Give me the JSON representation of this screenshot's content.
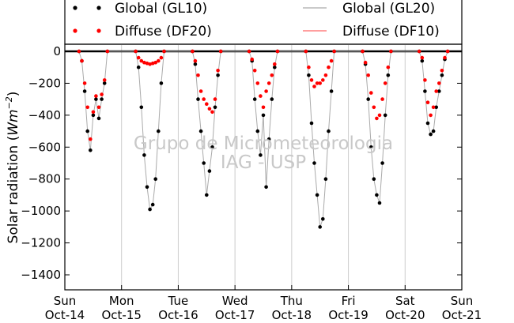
{
  "chart_data": {
    "type": "scatter",
    "ylabel": "Solar radiation (Wm⁻²)",
    "ylabel_parts": {
      "main": "Solar radiation (",
      "unit": "Wm",
      "exp": "−2",
      "close": ")"
    },
    "ylim": [
      -1500,
      0
    ],
    "yticks": [
      0,
      -200,
      -400,
      -600,
      -800,
      -1000,
      -1200,
      -1400
    ],
    "xlim": [
      0,
      7
    ],
    "xticks": [
      {
        "x": 0,
        "line1": "Sun",
        "line2": "Oct-14"
      },
      {
        "x": 1,
        "line1": "Mon",
        "line2": "Oct-15"
      },
      {
        "x": 2,
        "line1": "Tue",
        "line2": "Oct-16"
      },
      {
        "x": 3,
        "line1": "Wed",
        "line2": "Oct-17"
      },
      {
        "x": 4,
        "line1": "Thu",
        "line2": "Oct-18"
      },
      {
        "x": 5,
        "line1": "Fri",
        "line2": "Oct-19"
      },
      {
        "x": 6,
        "line1": "Sat",
        "line2": "Oct-20"
      },
      {
        "x": 7,
        "line1": "Sun",
        "line2": "Oct-21"
      }
    ],
    "grid_x": true,
    "legend_placement": "top",
    "legend": [
      {
        "label": "Global (GL10)",
        "style": "dots",
        "color": "#000000"
      },
      {
        "label": "Global (GL20)",
        "style": "line",
        "color": "#aaaaaa"
      },
      {
        "label": "Diffuse (DF20)",
        "style": "dots",
        "color": "#ff0000"
      },
      {
        "label": "Diffuse (DF10)",
        "style": "line",
        "color": "#ff6666"
      }
    ],
    "series": [
      {
        "name": "Global (GL10)",
        "color": "#000000",
        "style": "dots",
        "x": [
          0.25,
          0.3,
          0.35,
          0.4,
          0.45,
          0.5,
          0.55,
          0.6,
          0.65,
          0.7,
          0.75,
          1.25,
          1.3,
          1.35,
          1.4,
          1.45,
          1.5,
          1.55,
          1.6,
          1.65,
          1.7,
          1.75,
          2.25,
          2.3,
          2.35,
          2.4,
          2.45,
          2.5,
          2.55,
          2.6,
          2.65,
          2.7,
          2.75,
          3.25,
          3.3,
          3.35,
          3.4,
          3.45,
          3.5,
          3.55,
          3.6,
          3.65,
          3.7,
          3.75,
          4.25,
          4.3,
          4.35,
          4.4,
          4.45,
          4.5,
          4.55,
          4.6,
          4.65,
          4.7,
          4.75,
          5.25,
          5.3,
          5.35,
          5.4,
          5.45,
          5.5,
          5.55,
          5.6,
          5.65,
          5.7,
          5.75,
          6.25,
          6.3,
          6.35,
          6.4,
          6.45,
          6.5,
          6.55,
          6.6,
          6.65,
          6.7,
          6.75
        ],
        "y": [
          0,
          -60,
          -250,
          -500,
          -620,
          -400,
          -300,
          -420,
          -300,
          -200,
          0,
          0,
          -100,
          -350,
          -650,
          -850,
          -990,
          -960,
          -800,
          -500,
          -200,
          0,
          0,
          -80,
          -300,
          -500,
          -700,
          -900,
          -750,
          -600,
          -350,
          -150,
          0,
          0,
          -60,
          -300,
          -500,
          -650,
          -400,
          -850,
          -550,
          -300,
          -100,
          0,
          0,
          -150,
          -450,
          -700,
          -900,
          -1100,
          -1050,
          -800,
          -500,
          -250,
          0,
          0,
          -80,
          -300,
          -600,
          -800,
          -900,
          -950,
          -700,
          -400,
          -150,
          0,
          0,
          -60,
          -250,
          -450,
          -520,
          -500,
          -350,
          -250,
          -150,
          -50,
          0
        ]
      },
      {
        "name": "Diffuse (DF20)",
        "color": "#ff0000",
        "style": "dots",
        "x": [
          0.25,
          0.3,
          0.35,
          0.4,
          0.45,
          0.5,
          0.55,
          0.6,
          0.65,
          0.7,
          0.75,
          1.25,
          1.3,
          1.35,
          1.4,
          1.45,
          1.5,
          1.55,
          1.6,
          1.65,
          1.7,
          1.75,
          2.25,
          2.3,
          2.35,
          2.4,
          2.45,
          2.5,
          2.55,
          2.6,
          2.65,
          2.7,
          2.75,
          3.25,
          3.3,
          3.35,
          3.4,
          3.45,
          3.5,
          3.55,
          3.6,
          3.65,
          3.7,
          3.75,
          4.25,
          4.3,
          4.35,
          4.4,
          4.45,
          4.5,
          4.55,
          4.6,
          4.65,
          4.7,
          4.75,
          5.25,
          5.3,
          5.35,
          5.4,
          5.45,
          5.5,
          5.55,
          5.6,
          5.65,
          5.7,
          5.75,
          6.25,
          6.3,
          6.35,
          6.4,
          6.45,
          6.5,
          6.55,
          6.6,
          6.65,
          6.7,
          6.75
        ],
        "y": [
          0,
          -60,
          -200,
          -350,
          -550,
          -380,
          -280,
          -350,
          -270,
          -180,
          0,
          0,
          -40,
          -60,
          -70,
          -75,
          -80,
          -75,
          -70,
          -60,
          -40,
          0,
          0,
          -60,
          -150,
          -250,
          -300,
          -330,
          -360,
          -380,
          -300,
          -120,
          0,
          0,
          -50,
          -120,
          -200,
          -280,
          -350,
          -250,
          -200,
          -150,
          -80,
          0,
          0,
          -100,
          -180,
          -220,
          -200,
          -200,
          -180,
          -150,
          -100,
          -60,
          0,
          0,
          -70,
          -150,
          -260,
          -350,
          -420,
          -400,
          -300,
          -200,
          -100,
          0,
          0,
          -40,
          -180,
          -320,
          -400,
          -350,
          -250,
          -200,
          -120,
          -40,
          0
        ]
      }
    ]
  },
  "watermark": {
    "line1": "Grupo de Micrometeorologia",
    "line2": "IAG - USP"
  }
}
